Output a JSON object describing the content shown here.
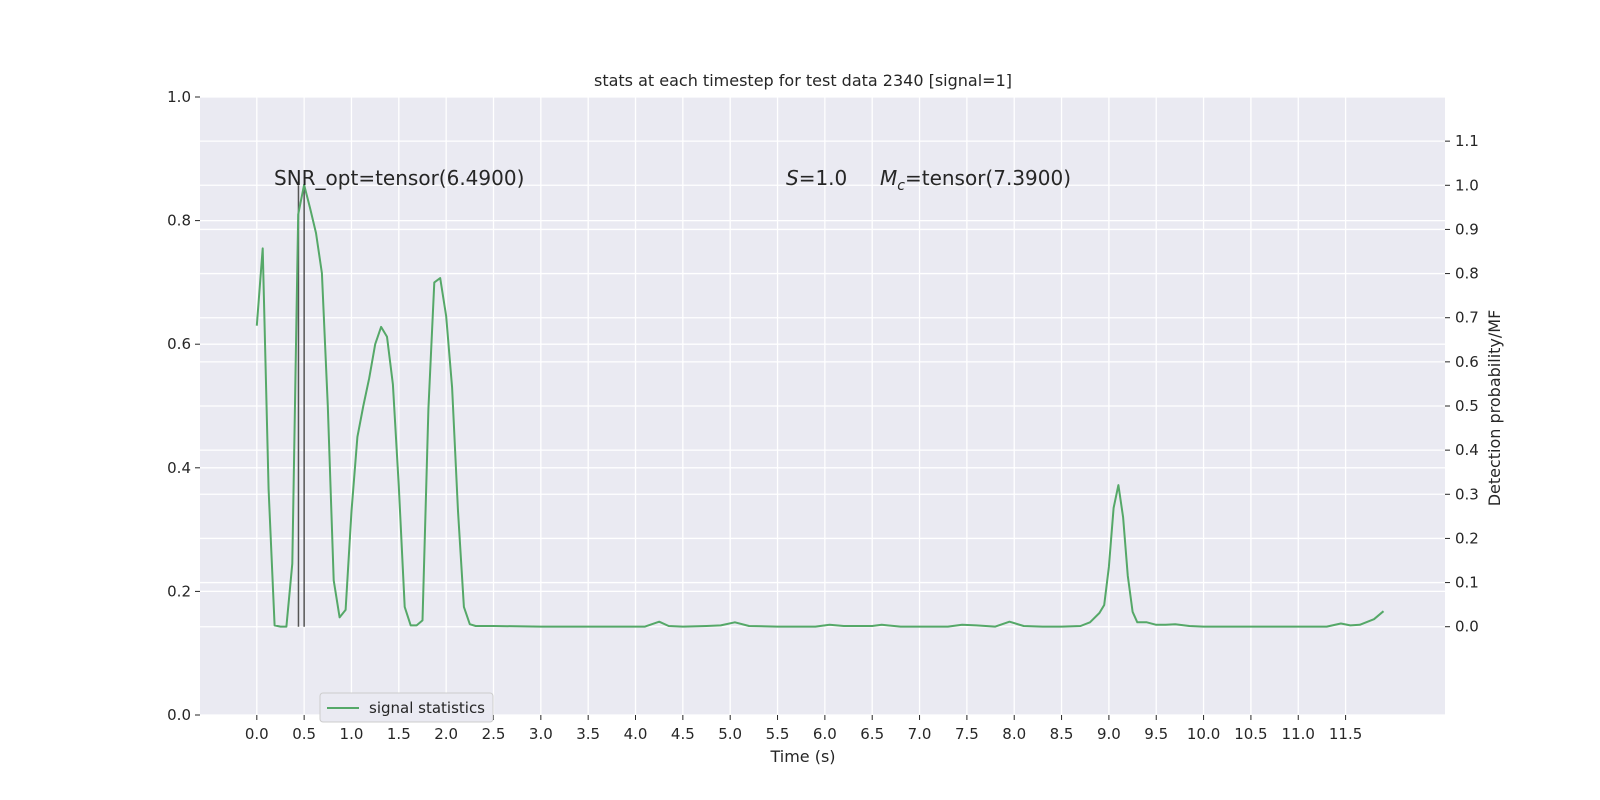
{
  "chart_data": {
    "type": "line",
    "title": "stats at each timestep for test data 2340 [signal=1]",
    "xlabel": "Time (s)",
    "ylabel_left": "",
    "ylabel_right": "Detection probability/MF",
    "xlim": [
      -0.6,
      12.55
    ],
    "ylim_left": [
      0.0,
      1.0
    ],
    "ylim_right": [
      -0.2,
      1.2
    ],
    "x_ticks": [
      "0.0",
      "0.5",
      "1.0",
      "1.5",
      "2.0",
      "2.5",
      "3.0",
      "3.5",
      "4.0",
      "4.5",
      "5.0",
      "5.5",
      "6.0",
      "6.5",
      "7.0",
      "7.5",
      "8.0",
      "8.5",
      "9.0",
      "9.5",
      "10.0",
      "10.5",
      "11.0",
      "11.5"
    ],
    "x_tick_values": [
      0,
      0.5,
      1,
      1.5,
      2,
      2.5,
      3,
      3.5,
      4,
      4.5,
      5,
      5.5,
      6,
      6.5,
      7,
      7.5,
      8,
      8.5,
      9,
      9.5,
      10,
      10.5,
      11,
      11.5
    ],
    "y_ticks_left": [
      "0.0",
      "0.2",
      "0.4",
      "0.6",
      "0.8",
      "1.0"
    ],
    "y_tick_values_left": [
      0,
      0.2,
      0.4,
      0.6,
      0.8,
      1.0
    ],
    "y_ticks_right": [
      "0.0",
      "0.1",
      "0.2",
      "0.3",
      "0.4",
      "0.5",
      "0.6",
      "0.7",
      "0.8",
      "0.9",
      "1.0",
      "1.1"
    ],
    "y_tick_values_right": [
      0,
      0.1,
      0.2,
      0.3,
      0.4,
      0.5,
      0.6,
      0.7,
      0.8,
      0.9,
      1.0,
      1.1
    ],
    "grid": true,
    "legend_placement": "lower-left",
    "background_color": "#eaeaf2",
    "grid_color": "#ffffff",
    "annotations": [
      {
        "text": "SNR_opt=tensor(6.4900)",
        "x": 0.2,
        "y": 0.86
      },
      {
        "text": "S=1.0",
        "x": 5.65,
        "y": 0.86
      },
      {
        "text": "M_c=tensor(7.3900)",
        "x": 6.65,
        "y": 0.86
      }
    ],
    "vlines": [
      {
        "x": 0.44,
        "y0": 0.0,
        "y1": 1.0,
        "axis": "right",
        "color": "#555555"
      },
      {
        "x": 0.5,
        "y0": 0.0,
        "y1": 1.0,
        "axis": "right",
        "color": "#555555"
      }
    ],
    "series": [
      {
        "name": "signal statistics",
        "color": "#55a868",
        "axis": "left",
        "x": [
          0,
          0.0625,
          0.125,
          0.1875,
          0.25,
          0.3125,
          0.375,
          0.4375,
          0.5,
          0.5625,
          0.625,
          0.6875,
          0.75,
          0.8125,
          0.875,
          0.9375,
          1.0,
          1.0625,
          1.125,
          1.1875,
          1.25,
          1.3125,
          1.375,
          1.4375,
          1.5,
          1.5625,
          1.625,
          1.6875,
          1.75,
          1.8125,
          1.875,
          1.9375,
          2.0,
          2.0625,
          2.125,
          2.1875,
          2.25,
          2.3125,
          2.375,
          2.5,
          3.0,
          3.5,
          4.0,
          4.1,
          4.25,
          4.35,
          4.5,
          4.75,
          4.9,
          5.05,
          5.2,
          5.5,
          5.9,
          6.05,
          6.2,
          6.5,
          6.6,
          6.8,
          7.0,
          7.3,
          7.45,
          7.6,
          7.8,
          7.95,
          8.1,
          8.3,
          8.5,
          8.7,
          8.8,
          8.9,
          8.95,
          9.0,
          9.05,
          9.1,
          9.15,
          9.2,
          9.25,
          9.3,
          9.4,
          9.5,
          9.6,
          9.7,
          9.85,
          10.0,
          10.5,
          11.0,
          11.3,
          11.45,
          11.55,
          11.65,
          11.8,
          11.9
        ],
        "y": [
          0.63,
          0.755,
          0.365,
          0.145,
          0.143,
          0.143,
          0.245,
          0.81,
          0.858,
          0.82,
          0.78,
          0.715,
          0.5,
          0.218,
          0.158,
          0.17,
          0.33,
          0.45,
          0.5,
          0.545,
          0.6,
          0.628,
          0.612,
          0.535,
          0.37,
          0.175,
          0.145,
          0.145,
          0.153,
          0.495,
          0.7,
          0.707,
          0.645,
          0.53,
          0.33,
          0.175,
          0.147,
          0.144,
          0.144,
          0.144,
          0.143,
          0.143,
          0.143,
          0.143,
          0.151,
          0.144,
          0.143,
          0.144,
          0.145,
          0.15,
          0.144,
          0.143,
          0.143,
          0.146,
          0.144,
          0.144,
          0.146,
          0.143,
          0.143,
          0.143,
          0.146,
          0.145,
          0.143,
          0.151,
          0.144,
          0.143,
          0.143,
          0.144,
          0.15,
          0.165,
          0.178,
          0.24,
          0.335,
          0.372,
          0.32,
          0.225,
          0.167,
          0.15,
          0.15,
          0.146,
          0.146,
          0.147,
          0.144,
          0.143,
          0.143,
          0.143,
          0.143,
          0.148,
          0.145,
          0.146,
          0.155,
          0.168
        ]
      }
    ]
  }
}
